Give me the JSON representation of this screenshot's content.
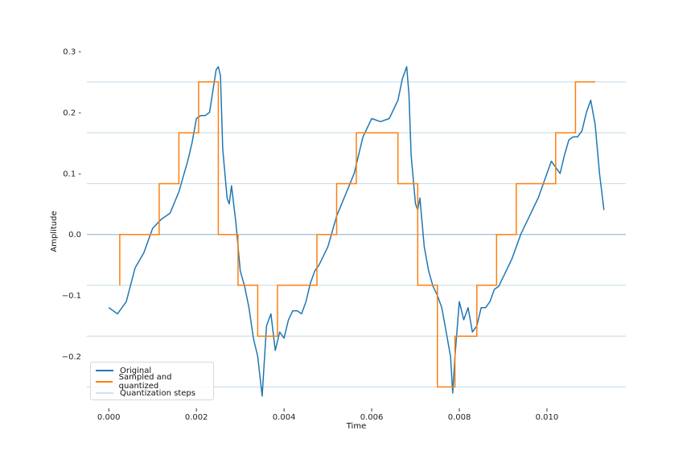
{
  "chart_data": {
    "type": "line",
    "title": "",
    "xlabel": "Time",
    "ylabel": "Amplitude",
    "xlim": [
      -0.0005,
      0.0118
    ],
    "ylim": [
      -0.285,
      0.3
    ],
    "x_ticks": [
      0.0,
      0.002,
      0.004,
      0.006,
      0.008,
      0.01
    ],
    "x_tick_labels": [
      "0.000",
      "0.002",
      "0.004",
      "0.006",
      "0.008",
      "0.010"
    ],
    "y_ticks": [
      0.3,
      0.2,
      0.1,
      0.0,
      -0.1,
      -0.2
    ],
    "y_tick_labels": [
      "0.3 -",
      "0.2 -",
      "0.1 -",
      "0.0",
      "−0.1",
      "−0.2"
    ],
    "quantization_levels": [
      0.25,
      0.1667,
      0.0833,
      0.0,
      -0.0833,
      -0.1667,
      -0.25
    ],
    "grid": false,
    "legend_position": "lower-left",
    "series": [
      {
        "name": "Original",
        "color": "#1f77b4",
        "x": [
          0.0,
          0.0002,
          0.0004,
          0.0006,
          0.0008,
          0.001,
          0.0012,
          0.0014,
          0.0016,
          0.0018,
          0.0019,
          0.002,
          0.0021,
          0.0022,
          0.0023,
          0.00245,
          0.0025,
          0.00255,
          0.0026,
          0.0027,
          0.00275,
          0.0028,
          0.0029,
          0.003,
          0.0031,
          0.0032,
          0.0033,
          0.0034,
          0.0035,
          0.0036,
          0.0037,
          0.0038,
          0.0039,
          0.004,
          0.0041,
          0.0042,
          0.0043,
          0.0044,
          0.0045,
          0.0046,
          0.0047,
          0.0048,
          0.005,
          0.0052,
          0.0054,
          0.0056,
          0.0058,
          0.006,
          0.0062,
          0.0064,
          0.0066,
          0.0067,
          0.0068,
          0.00685,
          0.0069,
          0.007,
          0.00705,
          0.0071,
          0.0072,
          0.0073,
          0.0074,
          0.0075,
          0.0076,
          0.0077,
          0.0078,
          0.00785,
          0.0079,
          0.008,
          0.0081,
          0.0082,
          0.0083,
          0.0084,
          0.0085,
          0.0086,
          0.0087,
          0.0088,
          0.0089,
          0.009,
          0.0092,
          0.0094,
          0.0096,
          0.0098,
          0.01,
          0.0101,
          0.0102,
          0.0103,
          0.0104,
          0.0105,
          0.0106,
          0.0107,
          0.0108,
          0.0109,
          0.011,
          0.0111,
          0.0112,
          0.0113
        ],
        "y": [
          -0.12,
          -0.13,
          -0.11,
          -0.055,
          -0.03,
          0.01,
          0.025,
          0.035,
          0.07,
          0.12,
          0.15,
          0.19,
          0.195,
          0.195,
          0.2,
          0.27,
          0.275,
          0.26,
          0.14,
          0.06,
          0.05,
          0.08,
          0.02,
          -0.06,
          -0.085,
          -0.12,
          -0.17,
          -0.2,
          -0.265,
          -0.15,
          -0.13,
          -0.19,
          -0.16,
          -0.17,
          -0.14,
          -0.125,
          -0.125,
          -0.13,
          -0.11,
          -0.08,
          -0.06,
          -0.05,
          -0.02,
          0.03,
          0.065,
          0.1,
          0.16,
          0.19,
          0.185,
          0.19,
          0.22,
          0.255,
          0.275,
          0.23,
          0.13,
          0.05,
          0.04,
          0.06,
          -0.02,
          -0.06,
          -0.085,
          -0.1,
          -0.12,
          -0.16,
          -0.2,
          -0.26,
          -0.2,
          -0.11,
          -0.14,
          -0.12,
          -0.16,
          -0.15,
          -0.12,
          -0.12,
          -0.11,
          -0.09,
          -0.085,
          -0.07,
          -0.04,
          0.0,
          0.03,
          0.06,
          0.1,
          0.12,
          0.11,
          0.1,
          0.13,
          0.155,
          0.16,
          0.16,
          0.17,
          0.2,
          0.22,
          0.18,
          0.1,
          0.04
        ]
      },
      {
        "name": "Sampled and quantized",
        "color": "#ff7f0e",
        "step": "post",
        "x": [
          0.00025,
          0.00025,
          0.00115,
          0.00115,
          0.0016,
          0.0016,
          0.00205,
          0.00205,
          0.0025,
          0.0025,
          0.00295,
          0.00295,
          0.0034,
          0.0034,
          0.00385,
          0.00385,
          0.00475,
          0.00475,
          0.0052,
          0.0052,
          0.00565,
          0.00565,
          0.0066,
          0.0066,
          0.00705,
          0.00705,
          0.0075,
          0.0075,
          0.0079,
          0.0079,
          0.0084,
          0.0084,
          0.00885,
          0.00885,
          0.0093,
          0.0093,
          0.0102,
          0.0102,
          0.01065,
          0.01065,
          0.0111
        ],
        "y": [
          -0.0833,
          0.0,
          0.0,
          0.0833,
          0.0833,
          0.1667,
          0.1667,
          0.25,
          0.25,
          0.0,
          0.0,
          -0.0833,
          -0.0833,
          -0.1667,
          -0.1667,
          -0.0833,
          -0.0833,
          0.0,
          0.0,
          0.0833,
          0.0833,
          0.1667,
          0.1667,
          0.0833,
          0.0833,
          -0.0833,
          -0.0833,
          -0.25,
          -0.25,
          -0.1667,
          -0.1667,
          -0.0833,
          -0.0833,
          0.0,
          0.0,
          0.0833,
          0.0833,
          0.1667,
          0.1667,
          0.25,
          0.25
        ]
      },
      {
        "name": "Quantization steps",
        "color": "#aac8dc"
      }
    ]
  }
}
